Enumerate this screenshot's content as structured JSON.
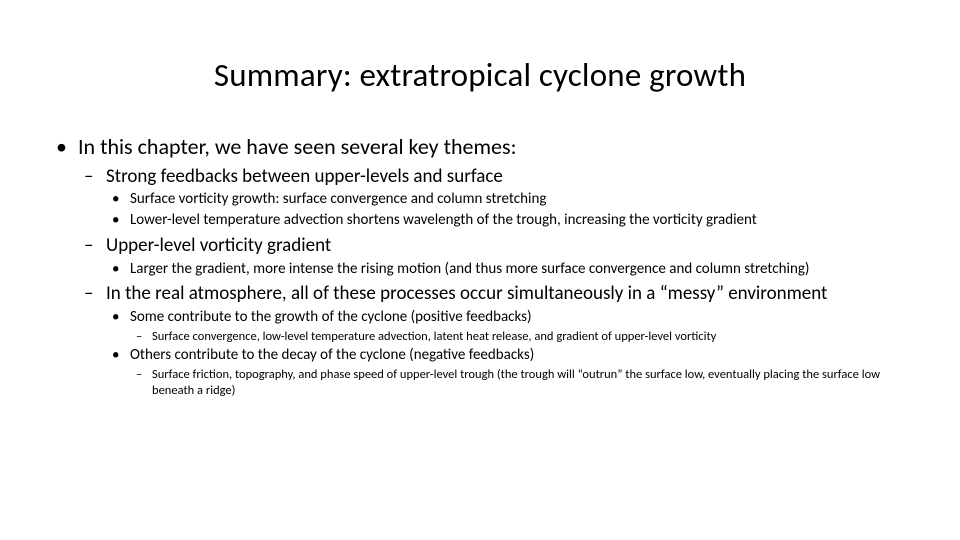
{
  "title": "Summary: extratropical cyclone growth",
  "b1": "In this chapter, we have seen several key themes:",
  "b1_1": "Strong feedbacks between upper-levels and surface",
  "b1_1_1": "Surface vorticity growth: surface convergence and column stretching",
  "b1_1_2": "Lower-level temperature advection shortens wavelength of the trough, increasing the vorticity gradient",
  "b1_2": "Upper-level vorticity gradient",
  "b1_2_1": "Larger the gradient, more intense the rising motion (and thus more surface convergence and column stretching)",
  "b1_3": "In the real atmosphere, all of these processes occur simultaneously in a “messy” environment",
  "b1_3_1": "Some contribute to the growth of the cyclone (positive feedbacks)",
  "b1_3_1_1": "Surface convergence, low-level temperature advection, latent heat release, and gradient of upper-level vorticity",
  "b1_3_2": "Others contribute to the decay of the cyclone (negative feedbacks)",
  "b1_3_2_1": "Surface friction, topography, and phase speed of upper-level trough (the trough will “outrun” the surface low, eventually placing the surface low beneath a ridge)",
  "colors": {
    "text": "#000000",
    "background": "#ffffff"
  },
  "fonts": {
    "family": "Calibri",
    "title_size_pt": 33,
    "lvl1_size_pt": 22,
    "lvl2_size_pt": 19,
    "lvl3_size_pt": 15,
    "lvl4_size_pt": 12.5
  },
  "bullets": {
    "lvl1": "•",
    "lvl2": "–",
    "lvl3": "•",
    "lvl4": "–"
  }
}
